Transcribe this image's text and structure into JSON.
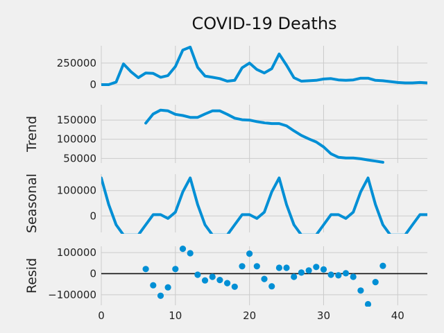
{
  "chart_data": {
    "type": "line",
    "title": "COVID-19 Deaths",
    "color": "#008fd5",
    "background": "#f0f0f0",
    "grid": true,
    "xlim": [
      0,
      44
    ],
    "xticks": [
      0,
      10,
      20,
      30,
      40
    ],
    "panels": [
      {
        "name": "observed",
        "ylabel": "",
        "kind": "line",
        "ylim": [
          0,
          450000
        ],
        "yticks": [
          0,
          250000
        ],
        "x": [
          0,
          1,
          2,
          3,
          4,
          5,
          6,
          7,
          8,
          9,
          10,
          11,
          12,
          13,
          14,
          15,
          16,
          17,
          18,
          19,
          20,
          21,
          22,
          23,
          24,
          25,
          26,
          27,
          28,
          29,
          30,
          31,
          32,
          33,
          34,
          35,
          36,
          37,
          38,
          39,
          40,
          41,
          42,
          43,
          44
        ],
        "values": [
          0,
          0,
          30000,
          240000,
          150000,
          80000,
          135000,
          130000,
          85000,
          105000,
          210000,
          400000,
          435000,
          200000,
          100000,
          85000,
          70000,
          40000,
          50000,
          195000,
          250000,
          175000,
          135000,
          185000,
          355000,
          225000,
          80000,
          40000,
          45000,
          50000,
          65000,
          70000,
          55000,
          50000,
          55000,
          75000,
          75000,
          50000,
          45000,
          35000,
          25000,
          20000,
          20000,
          25000,
          20000
        ]
      },
      {
        "name": "trend",
        "ylabel": "Trend",
        "kind": "line",
        "ylim": [
          38000,
          190000
        ],
        "yticks": [
          50000,
          100000,
          150000
        ],
        "x": [
          6,
          7,
          8,
          9,
          10,
          11,
          12,
          13,
          14,
          15,
          16,
          17,
          18,
          19,
          20,
          21,
          22,
          23,
          24,
          25,
          26,
          27,
          28,
          29,
          30,
          31,
          32,
          33,
          34,
          35,
          36,
          37,
          38
        ],
        "values": [
          142000,
          166000,
          176000,
          174000,
          165000,
          162000,
          157000,
          157000,
          166000,
          174000,
          174000,
          165000,
          155000,
          151000,
          150000,
          146000,
          143000,
          141000,
          141000,
          135000,
          122000,
          110000,
          101000,
          93000,
          80000,
          62000,
          53000,
          51000,
          51000,
          49000,
          46000,
          43000,
          40000
        ]
      },
      {
        "name": "seasonal",
        "ylabel": "Seasonal",
        "kind": "line",
        "ylim": [
          -65000,
          165000
        ],
        "yticks": [
          0,
          100000
        ],
        "x": [
          0,
          1,
          2,
          3,
          4,
          5,
          6,
          7,
          8,
          9,
          10,
          11,
          12,
          13,
          14,
          15,
          16,
          17,
          18,
          19,
          20,
          21,
          22,
          23,
          24,
          25,
          26,
          27,
          28,
          29,
          30,
          31,
          32,
          33,
          34,
          35,
          36,
          37,
          38,
          39,
          40,
          41,
          42,
          43,
          44
        ],
        "values": [
          150000,
          45000,
          -35000,
          -75000,
          -75000,
          -75000,
          -35000,
          5000,
          5000,
          -10000,
          15000,
          95000,
          150000,
          45000,
          -35000,
          -75000,
          -75000,
          -75000,
          -35000,
          5000,
          5000,
          -10000,
          15000,
          95000,
          150000,
          45000,
          -35000,
          -75000,
          -75000,
          -75000,
          -35000,
          5000,
          5000,
          -10000,
          15000,
          95000,
          150000,
          45000,
          -35000,
          -75000,
          -75000,
          -75000,
          -35000,
          5000,
          5000
        ]
      },
      {
        "name": "resid",
        "ylabel": "Resid",
        "kind": "scatter",
        "ylim": [
          -150000,
          130000
        ],
        "yticks": [
          -100000,
          0,
          100000
        ],
        "x": [
          6,
          7,
          8,
          9,
          10,
          11,
          12,
          13,
          14,
          15,
          16,
          17,
          18,
          19,
          20,
          21,
          22,
          23,
          24,
          25,
          26,
          27,
          28,
          29,
          30,
          31,
          32,
          33,
          34,
          35,
          36,
          37,
          38
        ],
        "values": [
          22000,
          -55000,
          -105000,
          -65000,
          22000,
          118000,
          97000,
          -5000,
          -32000,
          -15000,
          -30000,
          -45000,
          -62000,
          35000,
          95000,
          35000,
          -25000,
          -60000,
          28000,
          28000,
          -15000,
          5000,
          15000,
          32000,
          20000,
          -5000,
          -8000,
          2000,
          -15000,
          -80000,
          -145000,
          -40000,
          37000
        ]
      }
    ]
  }
}
